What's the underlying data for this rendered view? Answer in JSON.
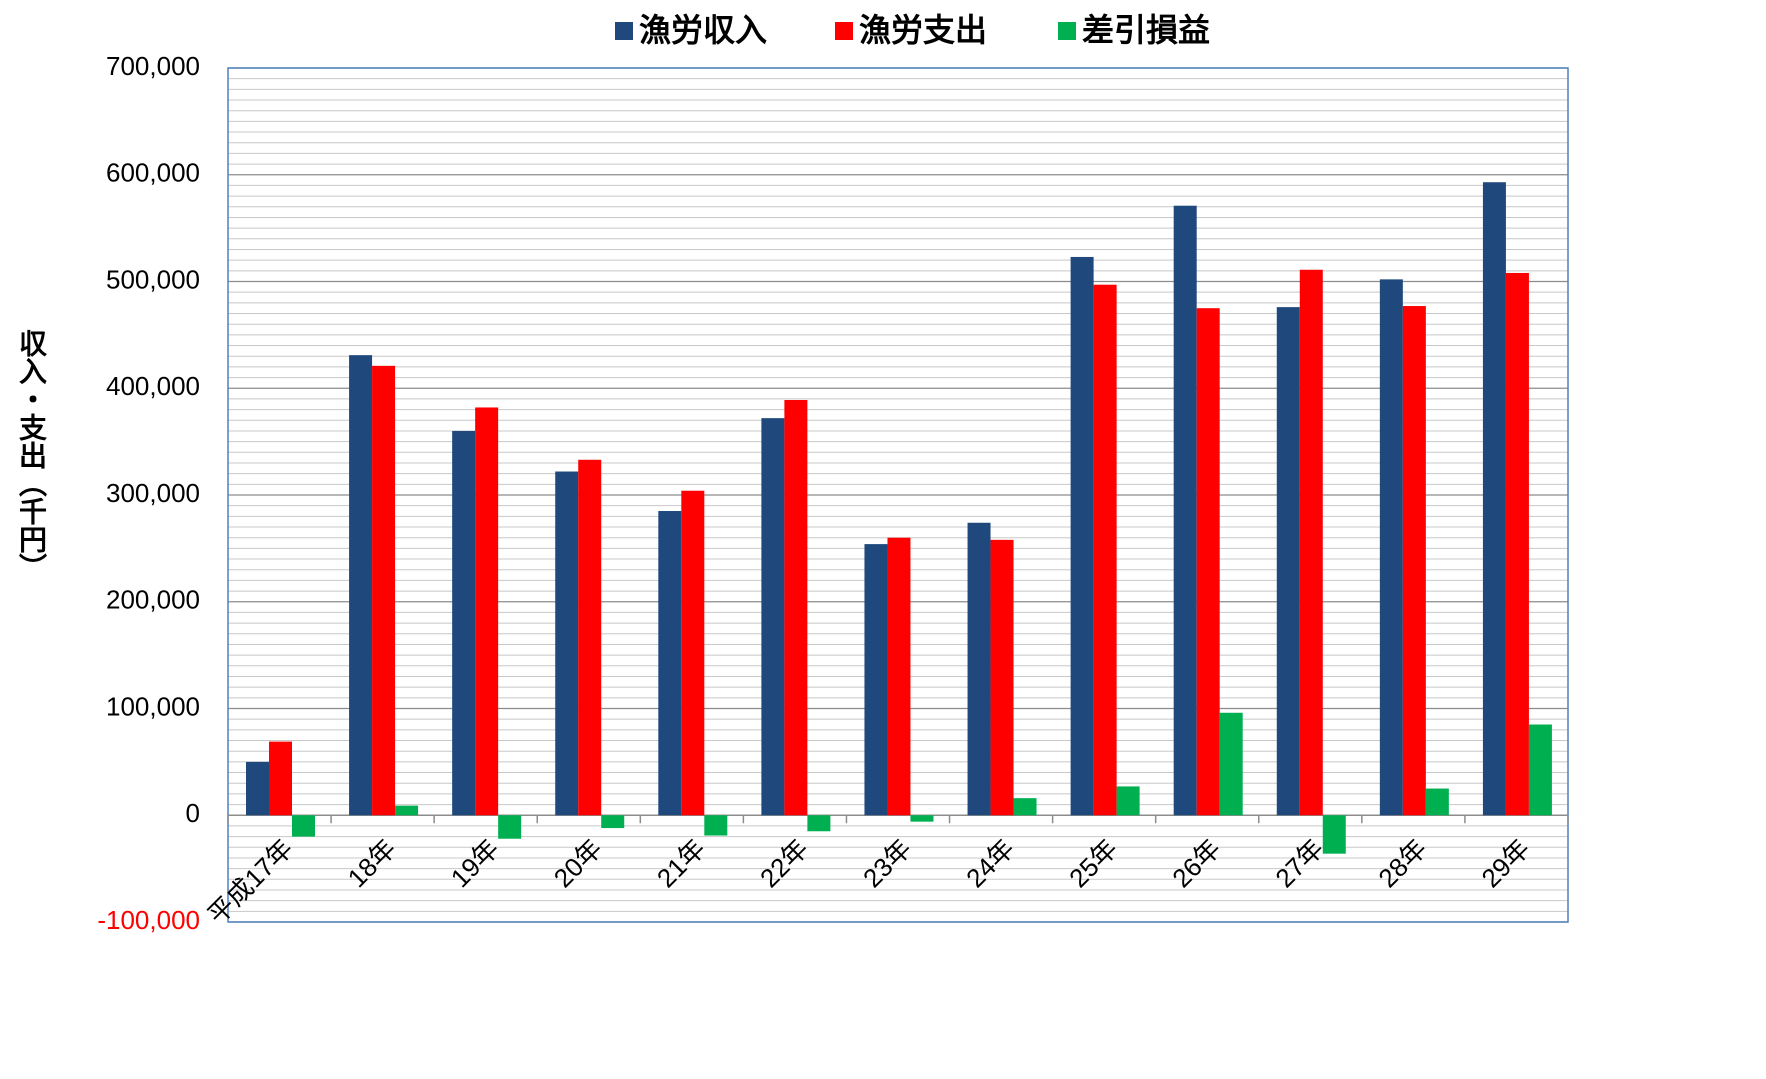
{
  "chart_data": {
    "type": "bar",
    "y_axis_label": "収入・支出（千円）",
    "categories": [
      "平成17年",
      "18年",
      "19年",
      "20年",
      "21年",
      "22年",
      "23年",
      "24年",
      "25年",
      "26年",
      "27年",
      "28年",
      "29年"
    ],
    "series": [
      {
        "name": "漁労収入",
        "color": "#1f497d",
        "values": [
          50000,
          431000,
          360000,
          322000,
          285000,
          372000,
          254000,
          274000,
          523000,
          571000,
          476000,
          502000,
          593000
        ]
      },
      {
        "name": "漁労支出",
        "color": "#ff0000",
        "values": [
          69000,
          421000,
          382000,
          333000,
          304000,
          389000,
          260000,
          258000,
          497000,
          475000,
          511000,
          477000,
          508000
        ]
      },
      {
        "name": "差引損益",
        "color": "#00b050",
        "values": [
          -20000,
          9000,
          -22000,
          -12000,
          -19000,
          -15000,
          -6000,
          16000,
          27000,
          96000,
          -36000,
          25000,
          85000
        ]
      }
    ],
    "ylim": [
      -100000,
      700000
    ],
    "yticks": [
      {
        "value": -100000,
        "label": "-100,000"
      },
      0,
      {
        "value": 100000,
        "label": "100,000"
      },
      {
        "value": 200000,
        "label": "200,000"
      },
      {
        "value": 300000,
        "label": "300,000"
      },
      {
        "value": 400000,
        "label": "400,000"
      },
      {
        "value": 500000,
        "label": "500,000"
      },
      {
        "value": 600000,
        "label": "600,000"
      },
      {
        "value": 700000,
        "label": "700,000"
      }
    ],
    "negative_tick_color": "#ff0000",
    "grid": true,
    "minor_grid_divisions": 10,
    "legend": "top"
  }
}
